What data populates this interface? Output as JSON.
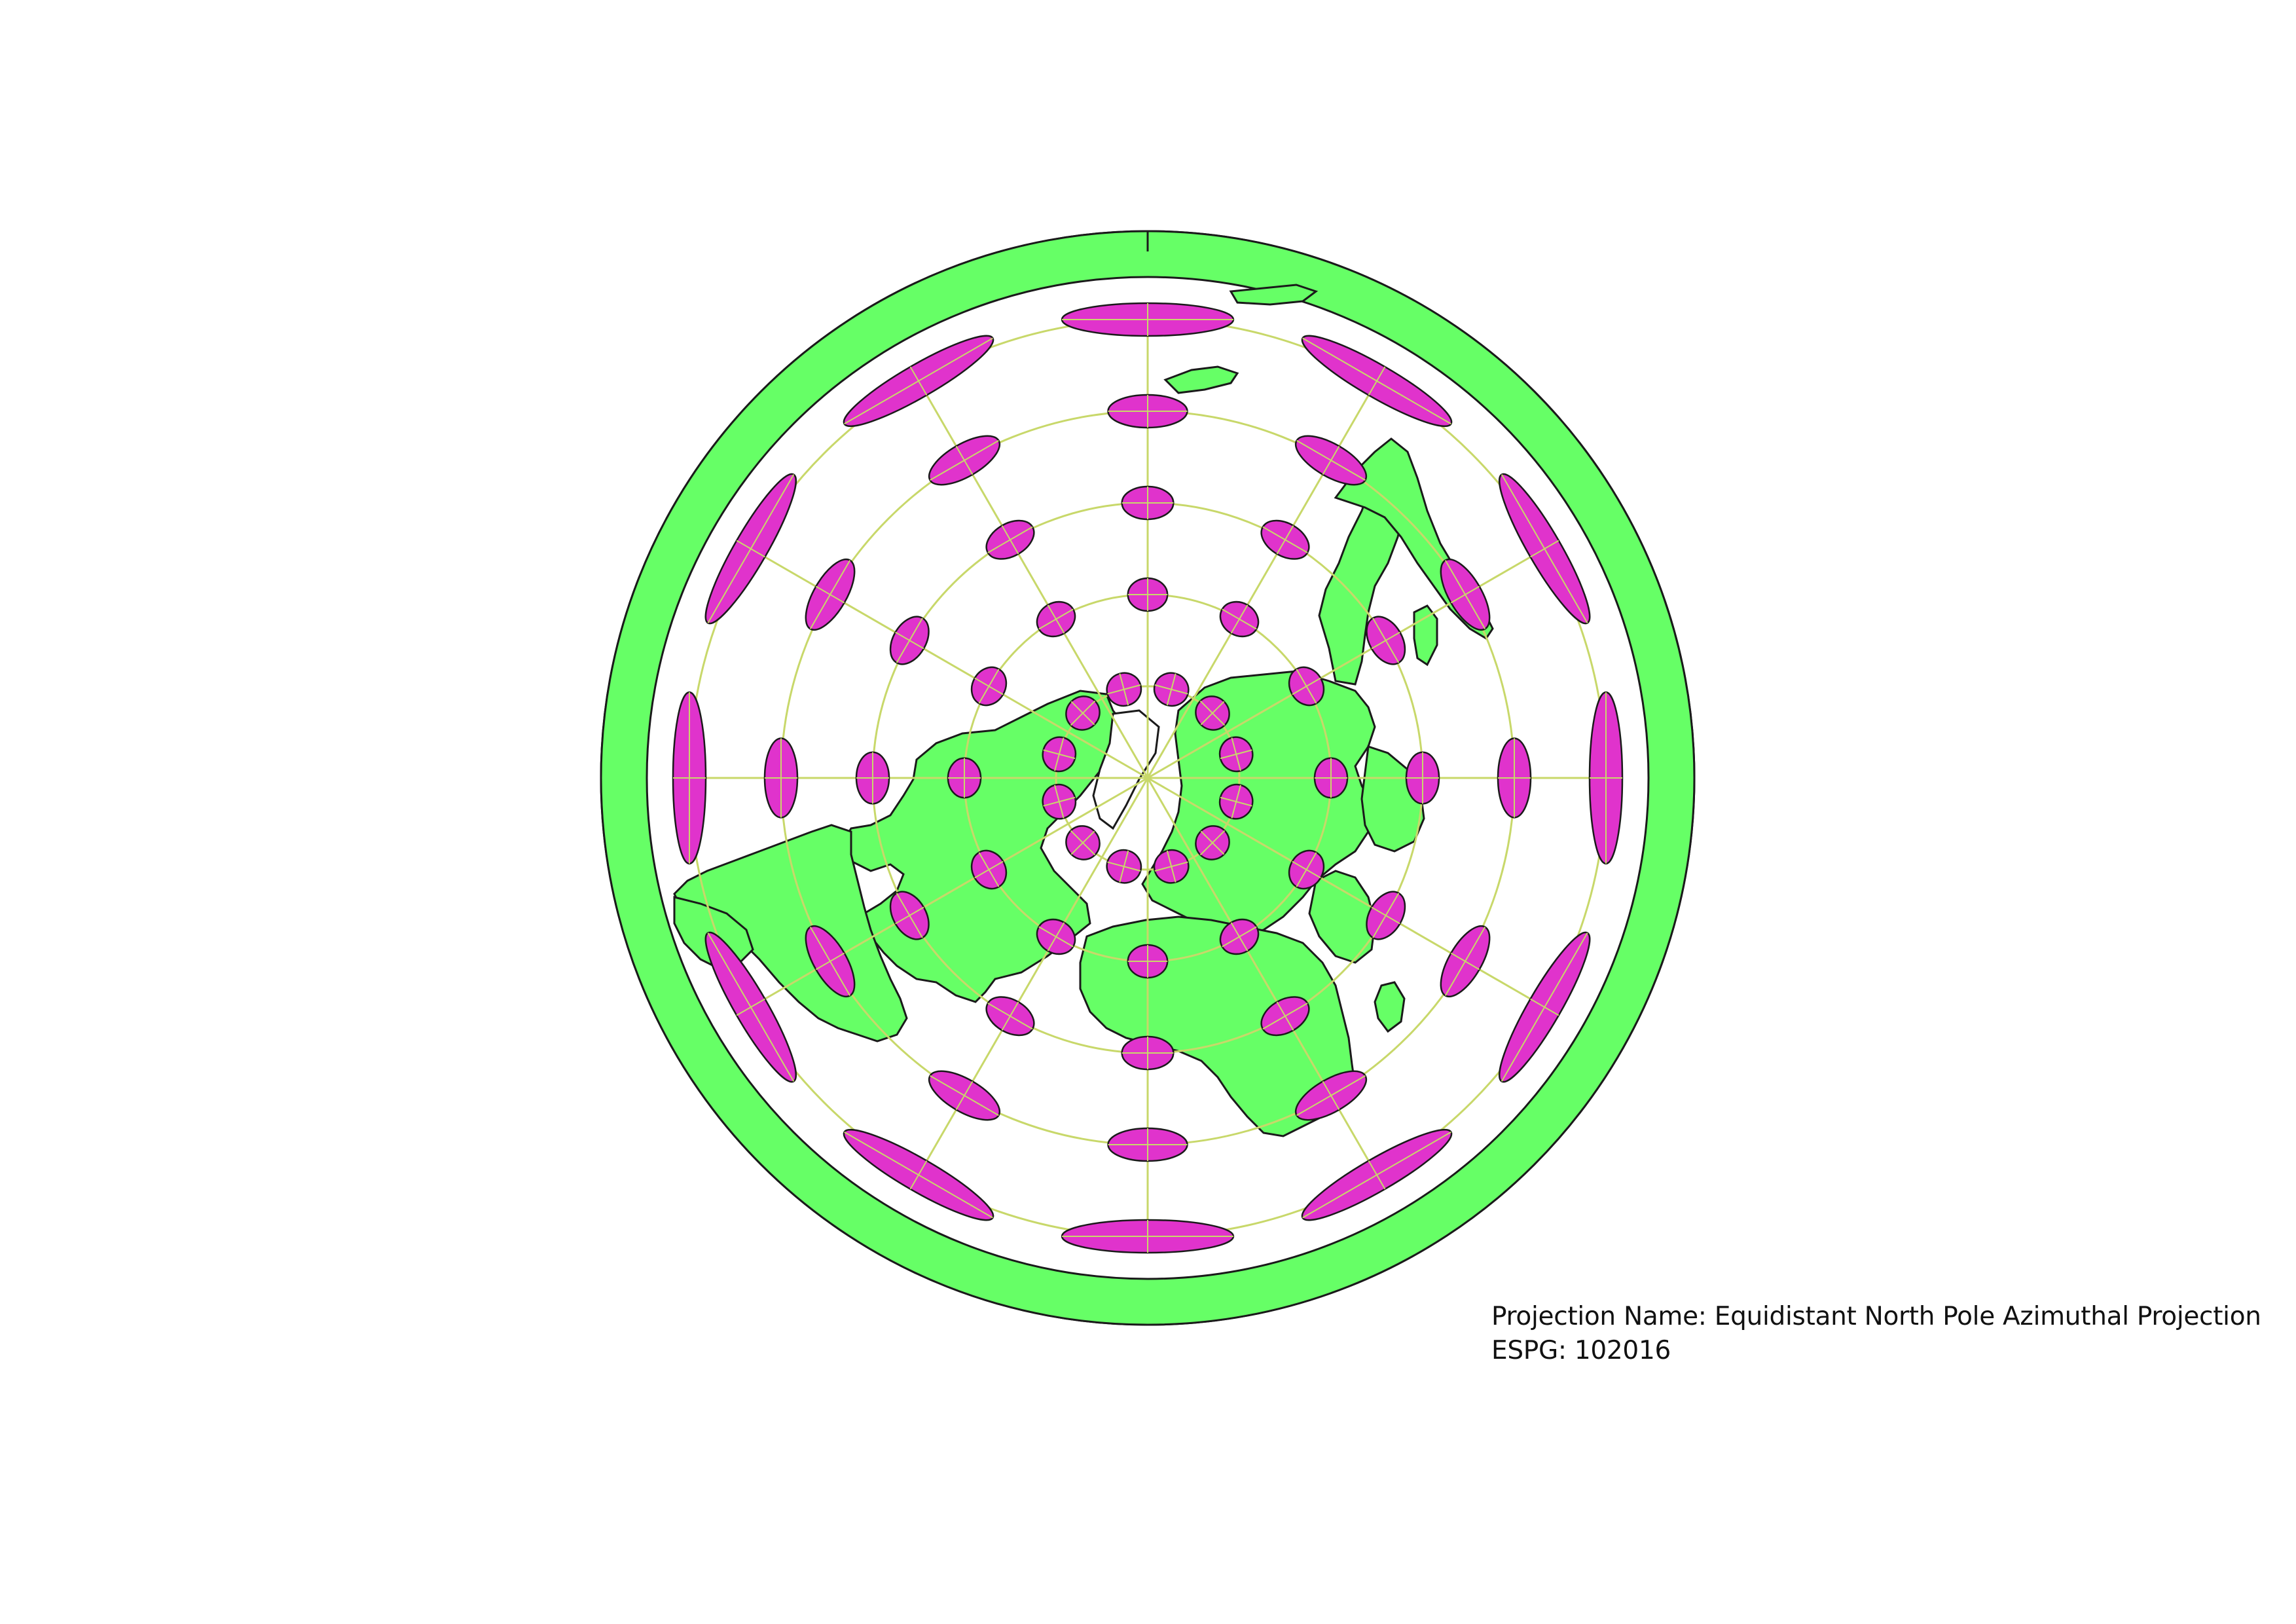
{
  "map": {
    "projection_name_label": "Projection Name:",
    "projection_name": "Equidistant North Pole Azimuthal Projection",
    "epsg_label": "ESPG:",
    "epsg_code": "102016",
    "center": "North Pole",
    "graticule": {
      "parallel_step_deg": 30,
      "meridian_step_deg": 30
    },
    "colors": {
      "background": "#ffffff",
      "land_fill": "#66ff66",
      "outline": "#1a1a1a",
      "tissot_fill": "#e033cc",
      "graticule": "#c8d86a"
    },
    "layers": [
      "land",
      "country-borders",
      "graticule",
      "tissot-indicatrices"
    ]
  }
}
